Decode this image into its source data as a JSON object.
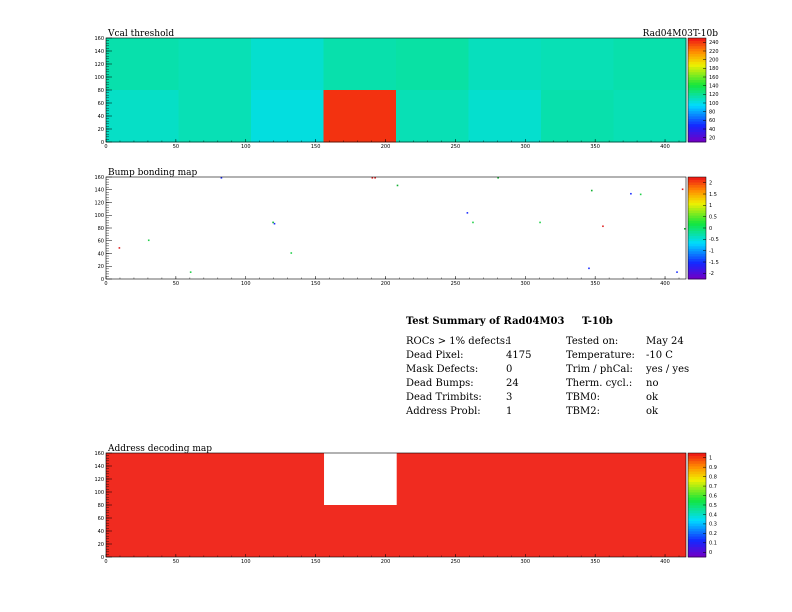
{
  "chart_data": [
    {
      "type": "heatmap",
      "title": "Vcal threshold",
      "module_label": "Rad04M03T-10b",
      "xlim": [
        0,
        415
      ],
      "ylim": [
        0,
        160
      ],
      "x_ticks": [
        "0",
        "50",
        "100",
        "150",
        "200",
        "250",
        "300",
        "350",
        "400"
      ],
      "y_ticks": [
        "0",
        "20",
        "40",
        "60",
        "80",
        "100",
        "120",
        "140",
        "160"
      ],
      "colorbar": [
        "20",
        "40",
        "60",
        "80",
        "100",
        "120",
        "140",
        "160",
        "180",
        "200",
        "220",
        "240"
      ],
      "roc_values": [
        [
          120,
          118,
          112,
          120,
          122,
          116,
          118,
          120
        ],
        [
          114,
          118,
          108,
          245,
          118,
          112,
          120,
          118
        ]
      ]
    },
    {
      "type": "heatmap",
      "title": "Bump bonding map",
      "xlim": [
        0,
        415
      ],
      "ylim": [
        0,
        160
      ],
      "x_ticks": [
        "0",
        "50",
        "100",
        "150",
        "200",
        "250",
        "300",
        "350",
        "400"
      ],
      "y_ticks": [
        "0",
        "20",
        "40",
        "60",
        "80",
        "100",
        "120",
        "140",
        "160"
      ],
      "colorbar": [
        "-2",
        "-1.5",
        "-1",
        "-0.5",
        "0",
        "0.5",
        "1",
        "1.5",
        "2"
      ],
      "points": [
        [
          82,
          164
        ],
        [
          30,
          62
        ],
        [
          9,
          50
        ],
        [
          119,
          90
        ],
        [
          120,
          88
        ],
        [
          132,
          42
        ],
        [
          192,
          160
        ],
        [
          280,
          160
        ],
        [
          258,
          105
        ],
        [
          310,
          90
        ],
        [
          355,
          84
        ],
        [
          347,
          140
        ],
        [
          375,
          135
        ],
        [
          382,
          134
        ],
        [
          412,
          142
        ],
        [
          419,
          80
        ],
        [
          408,
          12
        ],
        [
          262,
          90
        ],
        [
          190,
          162
        ],
        [
          208,
          148
        ],
        [
          345,
          18
        ],
        [
          60,
          12
        ]
      ]
    },
    {
      "type": "heatmap",
      "title": "Address decoding map",
      "xlim": [
        0,
        415
      ],
      "ylim": [
        0,
        160
      ],
      "x_ticks": [
        "0",
        "50",
        "100",
        "150",
        "200",
        "250",
        "300",
        "350",
        "400"
      ],
      "y_ticks": [
        "0",
        "20",
        "40",
        "60",
        "80",
        "100",
        "120",
        "140",
        "160"
      ],
      "colorbar": [
        "0",
        "0.1",
        "0.2",
        "0.3",
        "0.4",
        "0.5",
        "0.6",
        "0.7",
        "0.8",
        "0.9",
        "1"
      ],
      "missing_region": {
        "x": [
          156,
          208
        ],
        "y": [
          80,
          160
        ]
      }
    }
  ],
  "summary": {
    "title": "Test Summary of Rad04M03",
    "title_suffix": "T-10b",
    "left": [
      {
        "label": "ROCs > 1% defects:",
        "value": "1"
      },
      {
        "label": "Dead Pixel:",
        "value": "4175"
      },
      {
        "label": "Mask Defects:",
        "value": "0"
      },
      {
        "label": "Dead Bumps:",
        "value": "24"
      },
      {
        "label": "Dead Trimbits:",
        "value": "3"
      },
      {
        "label": "Address Probl:",
        "value": "1"
      }
    ],
    "right": [
      {
        "label": "Tested on:",
        "value": "May 24"
      },
      {
        "label": "Temperature:",
        "value": "-10 C"
      },
      {
        "label": "Trim / phCal:",
        "value": "yes / yes"
      },
      {
        "label": "Therm. cycl.:",
        "value": "no"
      },
      {
        "label": "TBM0:",
        "value": "ok"
      },
      {
        "label": "TBM2:",
        "value": "ok"
      }
    ]
  }
}
